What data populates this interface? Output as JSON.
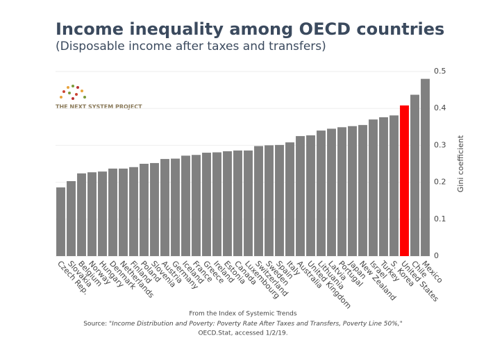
{
  "chart_data": {
    "type": "bar",
    "title": "Income inequality among OECD countries",
    "subtitle": "(Disposable income after taxes and transfers)",
    "y_label": "Gini coefficient",
    "logo_text": "THE NEXT SYSTEM PROJECT",
    "note": "From the Index of Systemic Trends",
    "source_prefix": "Source:",
    "source_title": "\"Income Distribution and Poverty: Poverty Rate After Taxes and Transfers, Poverty Line 50%,\"",
    "source_end": "OECD.Stat, accessed 1/2/19.",
    "categories": [
      "Czech Rep.",
      "Slovakia",
      "Belgium",
      "Norway",
      "Hungary",
      "Denmark",
      "Netherlands",
      "Finland",
      "Poland",
      "Slovenia",
      "Austria",
      "Germany",
      "Iceland",
      "France",
      "Greece",
      "Ireland",
      "Estonia",
      "Canada",
      "Luxembourg",
      "Switzerland",
      "Sweden",
      "Spain",
      "Italy",
      "Australia",
      "United Kingdom",
      "Lithuania",
      "Latvia",
      "Portugal",
      "Japan",
      "New Zealand",
      "Israel",
      "Turkey",
      "S. Korea",
      "United States",
      "Chile",
      "Mexico"
    ],
    "values": [
      0.186,
      0.203,
      0.224,
      0.227,
      0.229,
      0.237,
      0.237,
      0.241,
      0.25,
      0.252,
      0.263,
      0.264,
      0.272,
      0.274,
      0.28,
      0.281,
      0.284,
      0.286,
      0.286,
      0.298,
      0.3,
      0.301,
      0.308,
      0.325,
      0.327,
      0.34,
      0.345,
      0.349,
      0.352,
      0.355,
      0.37,
      0.376,
      0.381,
      0.408,
      0.437,
      0.48
    ],
    "color": "#808080",
    "highlight_color": "#ff0000",
    "highlight": "United States",
    "ylim": [
      0,
      0.5
    ],
    "yticks": [
      0,
      0.1,
      0.2,
      0.3,
      0.4,
      0.5
    ],
    "grid": true
  }
}
